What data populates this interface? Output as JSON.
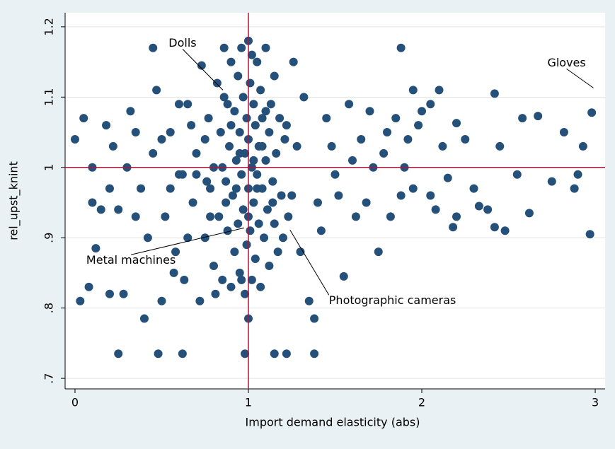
{
  "chart_data": {
    "type": "scatter",
    "xlabel": "Import demand elasticity (abs)",
    "ylabel": "rel_upst_knint",
    "xlim": [
      -0.057,
      3.057
    ],
    "ylim": [
      0.685,
      1.22
    ],
    "xticks": [
      0,
      1,
      2,
      3
    ],
    "yticks": [
      {
        "value": 0.7,
        "label": ".7"
      },
      {
        "value": 0.8,
        "label": ".8"
      },
      {
        "value": 0.9,
        "label": ".9"
      },
      1,
      1.1,
      1.2
    ],
    "grid": true,
    "reference_lines": {
      "x": 1,
      "y": 1,
      "color": "#b0143c"
    },
    "series": [
      {
        "color": "#24507a",
        "x": [
          0.25,
          0.48,
          0.62,
          0.98,
          1.15,
          1.22,
          1.38,
          1.88,
          0.45,
          2.97,
          2.98,
          2.93,
          2.88,
          2.9,
          2.82,
          2.75,
          2.62,
          2.58,
          2.55,
          2.67,
          2.48,
          2.42,
          2.42,
          2.38,
          2.45,
          2.33,
          2.3,
          2.2,
          2.18,
          2.2,
          2.25,
          2.15,
          2.12,
          2.1,
          2.05,
          2.0,
          1.98,
          2.05,
          2.08,
          1.9,
          1.95,
          1.88,
          1.85,
          1.8,
          1.75,
          1.72,
          1.65,
          1.62,
          1.55,
          1.5,
          1.45,
          1.4,
          1.38,
          1.35,
          1.32,
          1.3,
          1.28,
          1.25,
          1.22,
          1.2,
          0,
          0.03,
          0.05,
          0.08,
          0.1,
          0.12,
          0.1,
          0.15,
          0.18,
          0.2,
          0.22,
          0.25,
          0.28,
          0.3,
          0.32,
          0.35,
          0.38,
          0.4,
          0.42,
          0.45,
          0.47,
          0.5,
          0.52,
          0.55,
          0.58,
          0.6,
          0.63,
          0.65,
          0.68,
          0.7,
          0.72,
          0.73,
          0.75,
          0.77,
          0.78,
          0.8,
          0.8,
          0.82,
          0.83,
          0.84,
          0.85,
          0.86,
          0.87,
          0.88,
          0.88,
          0.89,
          0.9,
          0.9,
          0.91,
          0.92,
          0.92,
          0.93,
          0.94,
          0.94,
          0.95,
          0.95,
          0.96,
          0.96,
          0.97,
          0.97,
          0.98,
          0.98,
          0.99,
          0.99,
          1.0,
          1.0,
          1.0,
          1.0,
          1.01,
          1.01,
          1.02,
          1.02,
          1.03,
          1.03,
          1.04,
          1.04,
          1.05,
          1.05,
          1.06,
          1.06,
          1.07,
          1.07,
          1.08,
          1.08,
          1.09,
          1.1,
          1.1,
          1.11,
          1.12,
          1.12,
          1.13,
          1.14,
          1.15,
          1.15,
          1.16,
          1.17,
          1.18,
          1.19,
          1.21,
          1.23,
          0.85,
          0.9,
          0.95,
          1.0,
          1.05,
          1.1,
          0.87,
          0.93,
          1.03,
          1.08,
          0.2,
          0.35,
          0.55,
          0.6,
          0.65,
          0.7,
          0.75,
          0.78,
          1.26,
          1.42,
          1.48,
          1.52,
          1.58,
          1.6,
          1.68,
          1.7,
          1.78,
          1.82,
          1.92,
          1.95,
          0.5,
          0.57,
          0.62,
          0.67,
          0.76,
          0.81,
          0.86,
          0.96,
          1.02,
          1.14
        ],
        "values": [
          0.735,
          0.735,
          0.735,
          0.735,
          0.735,
          0.735,
          0.735,
          1.17,
          1.17,
          0.905,
          1.078,
          1.03,
          0.97,
          0.99,
          1.05,
          0.98,
          0.935,
          1.07,
          0.99,
          1.073,
          0.91,
          0.915,
          1.105,
          0.94,
          1.03,
          0.945,
          0.97,
          0.93,
          0.915,
          1.063,
          1.04,
          0.985,
          1.03,
          1.11,
          1.09,
          1.08,
          1.06,
          0.96,
          0.94,
          1.0,
          1.11,
          0.96,
          1.07,
          1.05,
          0.88,
          1.0,
          1.04,
          0.93,
          0.845,
          0.99,
          1.07,
          0.95,
          0.785,
          0.81,
          1.1,
          0.88,
          1.03,
          0.96,
          1.06,
          0.9,
          1.04,
          0.81,
          1.07,
          0.83,
          1.0,
          0.885,
          0.95,
          0.94,
          1.06,
          0.97,
          1.03,
          0.94,
          0.82,
          1.0,
          1.08,
          1.05,
          0.97,
          0.785,
          0.9,
          1.02,
          1.11,
          0.81,
          0.93,
          1.05,
          0.88,
          0.99,
          0.84,
          1.09,
          0.95,
          1.02,
          0.81,
          1.145,
          0.9,
          1.07,
          0.97,
          1.0,
          0.86,
          1.12,
          0.93,
          1.05,
          0.84,
          1.17,
          0.98,
          1.09,
          0.91,
          1.03,
          0.83,
          1.15,
          0.96,
          1.08,
          0.88,
          1.01,
          1.13,
          0.92,
          1.05,
          0.85,
          0.99,
          1.17,
          1.1,
          0.94,
          1.02,
          0.82,
          1.07,
          0.89,
          1.18,
          0.97,
          1.04,
          0.785,
          1.12,
          0.91,
          1.0,
          0.84,
          1.09,
          0.95,
          1.06,
          0.87,
          1.15,
          0.99,
          1.03,
          0.92,
          1.11,
          0.83,
          0.97,
          1.07,
          0.9,
          1.01,
          1.17,
          0.94,
          1.05,
          0.86,
          1.09,
          0.98,
          0.92,
          1.13,
          1.02,
          0.88,
          1.07,
          0.96,
          1.04,
          0.93,
          1.0,
          1.06,
          1.02,
          0.93,
          0.97,
          1.08,
          0.95,
          0.97,
          1.01,
          1.03,
          0.82,
          0.93,
          0.97,
          1.09,
          0.9,
          0.99,
          1.04,
          0.93,
          1.15,
          0.91,
          1.03,
          0.96,
          1.09,
          1.01,
          0.95,
          1.08,
          1.02,
          0.93,
          1.04,
          0.97,
          1.04,
          0.85,
          0.99,
          1.06,
          0.98,
          0.82,
          1.1,
          0.84,
          1.16,
          0.95
        ]
      }
    ],
    "annotations": [
      {
        "text": "Dolls",
        "x": 0.853,
        "y": 1.11
      },
      {
        "text": "Gloves",
        "x": 2.99,
        "y": 1.113
      },
      {
        "text": "Metal machines",
        "x": 0.976,
        "y": 0.914
      },
      {
        "text": "Photographic cameras",
        "x": 1.24,
        "y": 0.911
      }
    ]
  }
}
